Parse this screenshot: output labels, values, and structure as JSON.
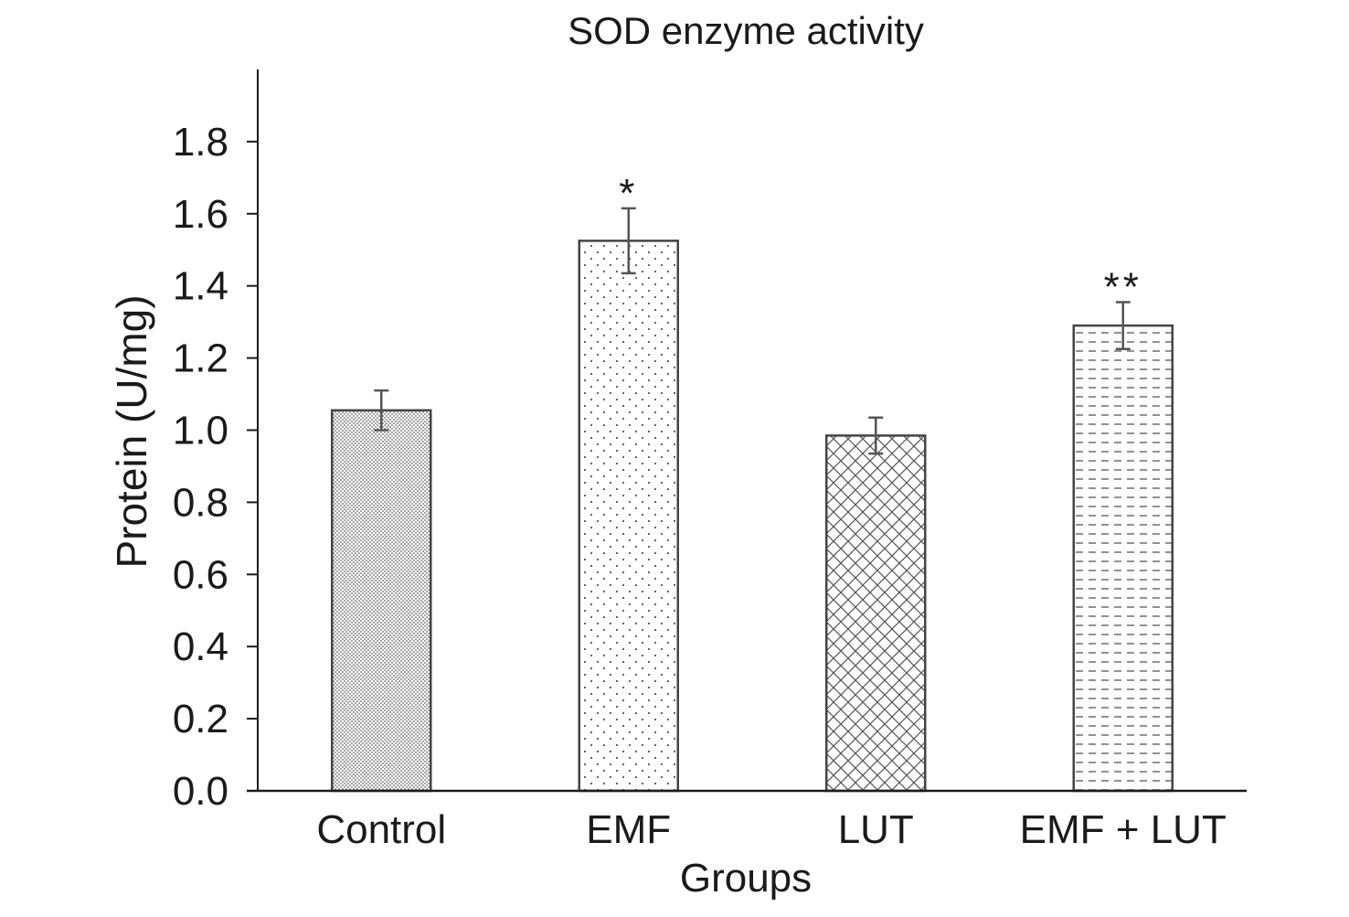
{
  "chart_data": {
    "type": "bar",
    "title": "SOD enzyme activity",
    "xlabel": "Groups",
    "ylabel": "Protein (U/mg)",
    "categories": [
      "Control",
      "EMF",
      "LUT",
      "EMF + LUT"
    ],
    "values": [
      1.055,
      1.525,
      0.985,
      1.29
    ],
    "errors": [
      0.055,
      0.09,
      0.05,
      0.065
    ],
    "annotations": [
      "",
      "*",
      "",
      "**"
    ],
    "ylim": [
      0,
      2.0
    ],
    "yticks": [
      0,
      0.2,
      0.4,
      0.6,
      0.8,
      1.0,
      1.2,
      1.4,
      1.6,
      1.8
    ],
    "ytick_labels": [
      "0.0",
      "0.2",
      "0.4",
      "0.6",
      "0.8",
      "1.0",
      "1.2",
      "1.4",
      "1.6",
      "1.8"
    ],
    "grid": false,
    "bar_fills": [
      "dense-dots",
      "sparse-dots",
      "crosshatch",
      "dashes"
    ],
    "colors": {
      "axis": "#1a1a1a",
      "bar_edge": "#444444",
      "pattern": "#555555",
      "error_bar": "#555555"
    }
  }
}
